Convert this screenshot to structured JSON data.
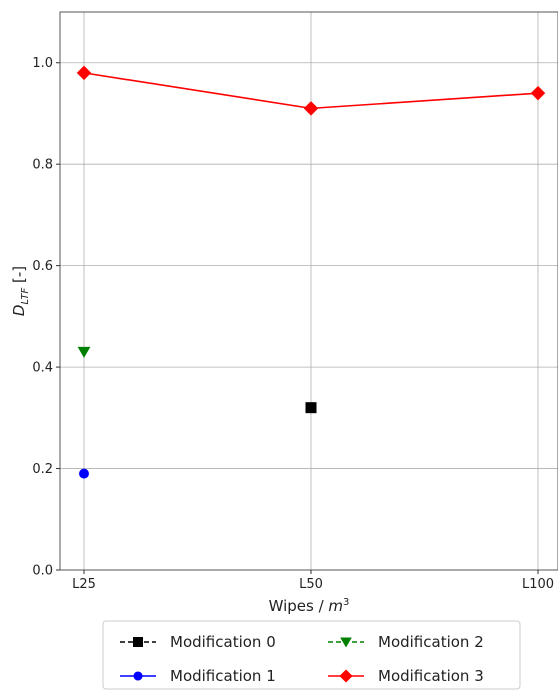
{
  "chart_data": {
    "type": "line",
    "categories": [
      "L25",
      "L50",
      "L100"
    ],
    "xlabel": "Wipes / m³",
    "ylabel": "D_LTF [-]",
    "ylim": [
      0.0,
      1.1
    ],
    "yticks": [
      0.0,
      0.2,
      0.4,
      0.6,
      0.8,
      1.0
    ],
    "grid": true,
    "legend_position": "bottom-center",
    "series": [
      {
        "name": "Modification 0",
        "color": "#000000",
        "marker": "square",
        "linestyle": "dashed",
        "values": [
          null,
          0.32,
          null
        ]
      },
      {
        "name": "Modification 1",
        "color": "#0000ff",
        "marker": "circle",
        "linestyle": "solid",
        "values": [
          0.19,
          null,
          null
        ]
      },
      {
        "name": "Modification 2",
        "color": "#008000",
        "marker": "triangle-down",
        "linestyle": "dashed",
        "values": [
          0.43,
          null,
          null
        ]
      },
      {
        "name": "Modification 3",
        "color": "#ff0000",
        "marker": "diamond",
        "linestyle": "solid",
        "values": [
          0.98,
          0.91,
          0.94
        ]
      }
    ]
  }
}
